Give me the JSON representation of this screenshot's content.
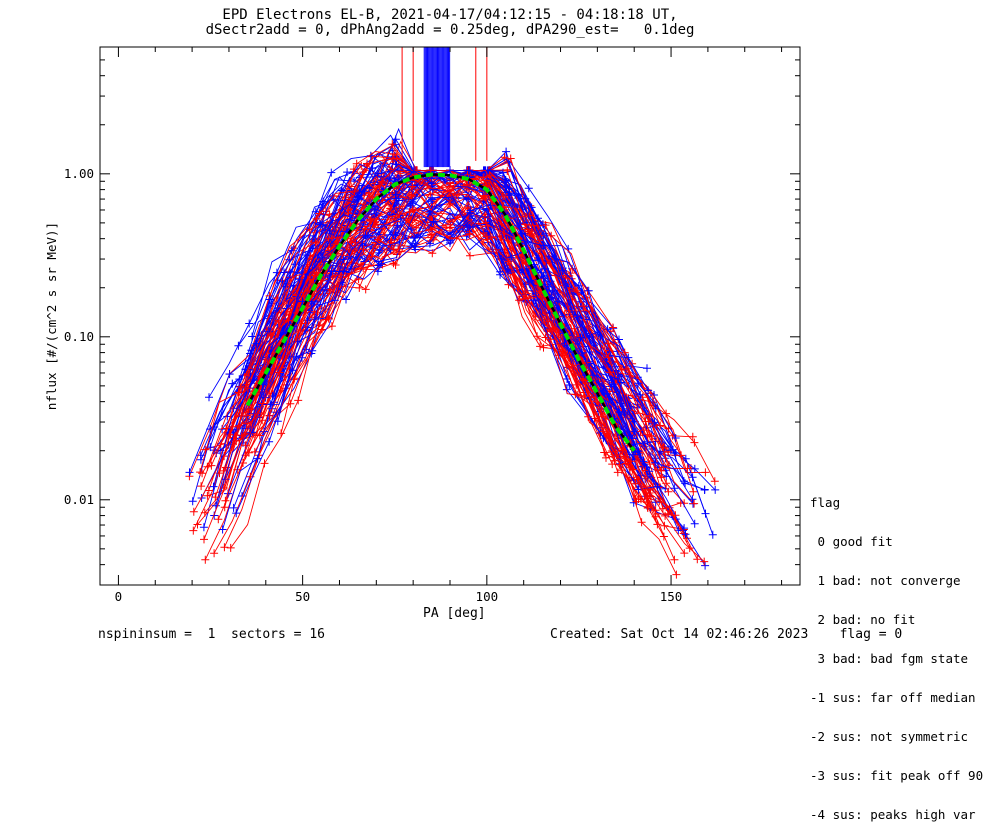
{
  "title": {
    "line1": "EPD Electrons EL-B, 2021-04-17/04:12:15 - 04:18:18 UT,",
    "line2": "dSectr2add = 0, dPhAng2add = 0.25deg, dPA290_est=   0.1deg"
  },
  "footer": {
    "left": "nspininsum =  1  sectors = 16",
    "created": "Created: Sat Oct 14 02:46:26 2023    flag = 0"
  },
  "legend": {
    "title": "flag",
    "items": [
      " 0 good fit",
      " 1 bad: not converge",
      " 2 bad: no fit",
      " 3 bad: bad fgm state",
      "-1 sus: far off median",
      "-2 sus: not symmetric",
      "-3 sus: fit peak off 90",
      "-4 sus: peaks high var"
    ]
  },
  "colors": {
    "series_a": "#0000ff",
    "series_b": "#ff0000",
    "fit": "#00e000",
    "median": "#000000",
    "axis": "#000000"
  },
  "chart_data": {
    "type": "line",
    "xlabel": "PA [deg]",
    "ylabel": "nflux [#/(cm^2 s sr MeV)]",
    "xlim": [
      -5,
      185
    ],
    "ylim": [
      0.003,
      6
    ],
    "ylog": true,
    "xticks": [
      0,
      50,
      100,
      150
    ],
    "xtick_labels": [
      "0",
      "50",
      "100",
      "150"
    ],
    "yticks": [
      0.01,
      0.1,
      1.0
    ],
    "ytick_labels": [
      "0.01",
      "0.10",
      "1.00"
    ],
    "grid": false,
    "legend_position": "right",
    "pa": [
      25,
      30,
      35,
      40,
      45,
      50,
      55,
      60,
      65,
      70,
      75,
      80,
      85,
      90,
      95,
      100,
      105,
      110,
      115,
      120,
      125,
      130,
      135,
      140,
      145,
      150,
      155
    ],
    "series": [
      {
        "color": "blue",
        "values": [
          0.012,
          0.022,
          0.04,
          0.07,
          0.12,
          0.2,
          0.3,
          0.42,
          0.52,
          0.62,
          0.72,
          0.8,
          0.85,
          0.86,
          0.84,
          0.78,
          0.56,
          0.38,
          0.25,
          0.16,
          0.1,
          0.065,
          0.042,
          0.027,
          0.018,
          0.012,
          0.008
        ]
      },
      {
        "color": "red",
        "values": [
          0.01,
          0.018,
          0.032,
          0.056,
          0.1,
          0.17,
          0.26,
          0.37,
          0.48,
          0.6,
          0.7,
          0.78,
          0.82,
          0.83,
          0.81,
          0.75,
          0.52,
          0.34,
          0.22,
          0.14,
          0.09,
          0.058,
          0.037,
          0.024,
          0.016,
          0.01,
          0.007
        ]
      },
      {
        "name": "",
        "color": "green-dashed",
        "values": [
          null,
          null,
          0.038,
          0.06,
          0.095,
          0.15,
          0.24,
          0.36,
          0.52,
          0.7,
          0.86,
          0.95,
          0.99,
          0.98,
          0.93,
          0.8,
          0.56,
          0.34,
          0.2,
          0.12,
          0.072,
          0.045,
          0.028,
          0.02,
          null,
          null,
          null
        ]
      }
    ]
  }
}
